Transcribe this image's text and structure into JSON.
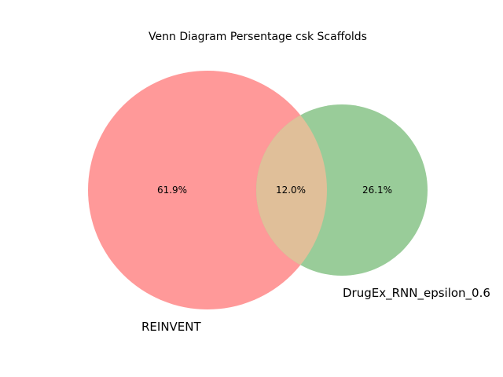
{
  "title": "Venn Diagram Persentage csk Scaffolds",
  "sets": [
    {
      "name": "REINVENT",
      "color": "#ff9999"
    },
    {
      "name": "DrugEx_RNN_epsilon_0.6",
      "color": "#99cc99"
    }
  ],
  "regions": {
    "only_a": "61.9%",
    "both": "12.0%",
    "only_b": "26.1%"
  },
  "overlap_color": "#e0bf99"
}
